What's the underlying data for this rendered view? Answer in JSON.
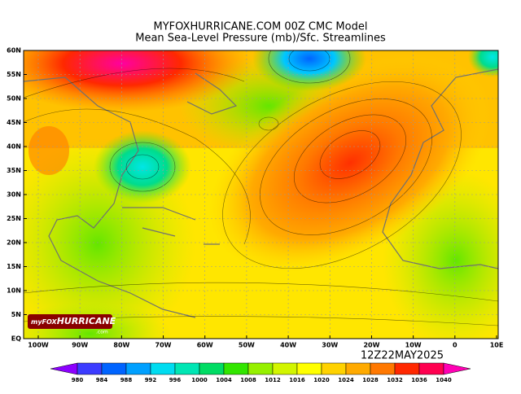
{
  "title": [
    "MYFOXHURRICANE.COM 00Z CMC Model",
    "Mean Sea-Level Pressure (mb)/Sfc. Streamlines"
  ],
  "lat_labels": [
    "60N",
    "55N",
    "50N",
    "45N",
    "40N",
    "35N",
    "30N",
    "25N",
    "20N",
    "15N",
    "10N",
    "5N",
    "EQ"
  ],
  "lon_labels": [
    "100W",
    "90W",
    "80W",
    "70W",
    "60W",
    "50W",
    "40W",
    "30W",
    "20W",
    "10W",
    "0",
    "10E"
  ],
  "valid_time": "12Z22MAY2025",
  "logo": {
    "brand": "myFOX",
    "name": "HURRICANE",
    "suffix": ".com"
  },
  "colorbar": {
    "labels": [
      980,
      984,
      988,
      992,
      996,
      1000,
      1004,
      1008,
      1012,
      1016,
      1020,
      1024,
      1028,
      1032,
      1036,
      1040
    ],
    "colors": [
      "#8c00ff",
      "#3c3cff",
      "#0064ff",
      "#00a0ff",
      "#00dcf0",
      "#00e6b4",
      "#00dc64",
      "#32e600",
      "#96f000",
      "#d2f500",
      "#ffff00",
      "#ffd200",
      "#ffaa00",
      "#ff7800",
      "#ff2800",
      "#ff0050",
      "#ff00b4"
    ]
  }
}
